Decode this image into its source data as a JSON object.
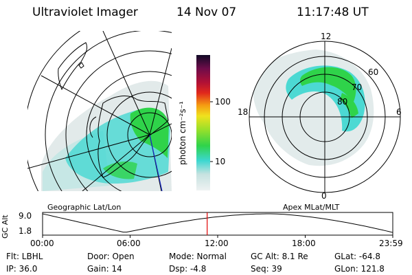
{
  "header": {
    "instrument": "Ultraviolet Imager",
    "date": "14 Nov 07",
    "time": "11:17:48 UT"
  },
  "colorbar": {
    "unit_label": "photon cm⁻²s⁻¹",
    "ticks": [
      "100",
      "10"
    ]
  },
  "geo_panel": {
    "label": "Geographic Lat/Lon"
  },
  "polar_panel": {
    "label": "Apex MLat/MLT",
    "mlt_labels": {
      "top": "12",
      "left": "18",
      "right": "6",
      "bottom": "0"
    },
    "lat_labels": [
      "60",
      "70",
      "80"
    ]
  },
  "altitude_plot": {
    "ylabel": "GC Alt",
    "yticks": [
      "9.0",
      "1.8"
    ],
    "xticks": [
      "00:00",
      "06:00",
      "12:00",
      "18:00",
      "23:59"
    ],
    "current_time_fraction": 0.47
  },
  "footer": {
    "flt": "Flt: LBHL",
    "ip": "IP: 36.0",
    "door": "Door: Open",
    "gain": "Gain: 14",
    "mode": "Mode: Normal",
    "dsp": "Dsp:    -4.8",
    "gcalt": "GC Alt: 8.1 Re",
    "seq": "Seq: 39",
    "glat": "GLat: -64.8",
    "glon": "GLon: 121.8"
  },
  "colors": {
    "auroral_green": "#2fd34a",
    "cyan": "#3cd7d0",
    "pale": "#d9e5e5",
    "current_time_marker": "#e00000"
  }
}
